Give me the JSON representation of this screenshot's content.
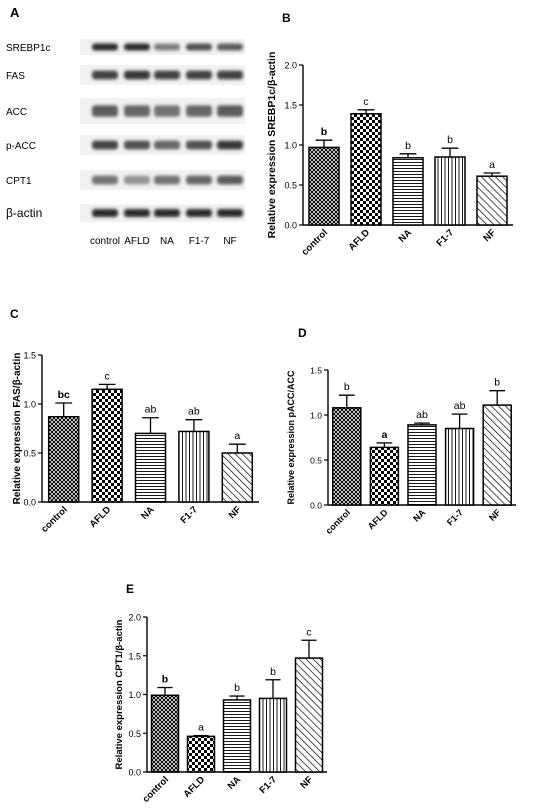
{
  "colors": {
    "ink": "#000000",
    "blot_background": "#f2f2f2"
  },
  "blot_panel": {
    "panel_letter": "A",
    "rows": [
      {
        "label": "SREBP1c",
        "intensities": [
          0.9,
          0.9,
          0.55,
          0.75,
          0.7
        ]
      },
      {
        "label": "FAS",
        "intensities": [
          0.8,
          0.85,
          0.8,
          0.8,
          0.8
        ]
      },
      {
        "label": "ACC",
        "intensities": [
          0.7,
          0.65,
          0.6,
          0.65,
          0.7
        ]
      },
      {
        "label": "p-ACC",
        "intensities": [
          0.8,
          0.75,
          0.65,
          0.75,
          0.85
        ]
      },
      {
        "label": "CPT1",
        "intensities": [
          0.6,
          0.45,
          0.6,
          0.65,
          0.7
        ]
      },
      {
        "label": "β-actin",
        "intensities": [
          0.9,
          0.9,
          0.9,
          0.9,
          0.9
        ]
      }
    ],
    "lanes": [
      "control",
      "AFLD",
      "NA",
      "F1-7",
      "NF"
    ]
  },
  "chart_data": [
    {
      "panel_letter": "B",
      "type": "bar",
      "categories": [
        "control",
        "AFLD",
        "NA",
        "F1-7",
        "NF"
      ],
      "values": [
        0.97,
        1.39,
        0.84,
        0.85,
        0.61
      ],
      "errors": [
        0.09,
        0.05,
        0.05,
        0.11,
        0.04
      ],
      "sig_labels": [
        "b",
        "c",
        "b",
        "b",
        "a"
      ],
      "sig_bold": [
        true,
        false,
        false,
        false,
        false
      ],
      "patterns": [
        "crosshatch",
        "checker",
        "hlines",
        "vlines",
        "diag"
      ],
      "ylabel": "Relative expression SREBP1c/β-actin",
      "ylim": [
        0,
        2.0
      ],
      "yticks": [
        "0.0",
        "0.5",
        "1.0",
        "1.5",
        "2.0"
      ]
    },
    {
      "panel_letter": "C",
      "type": "bar",
      "categories": [
        "control",
        "AFLD",
        "NA",
        "F1-7",
        "NF"
      ],
      "values": [
        0.87,
        1.15,
        0.7,
        0.72,
        0.5
      ],
      "errors": [
        0.14,
        0.05,
        0.16,
        0.12,
        0.09
      ],
      "sig_labels": [
        "bc",
        "c",
        "ab",
        "ab",
        "a"
      ],
      "sig_bold": [
        true,
        false,
        false,
        false,
        false
      ],
      "patterns": [
        "crosshatch",
        "checker",
        "hlines",
        "vlines",
        "diag"
      ],
      "ylabel": "Relative expression FAS/β-actin",
      "ylim": [
        0,
        1.5
      ],
      "yticks": [
        "0.0",
        "0.5",
        "1.0",
        "1.5"
      ]
    },
    {
      "panel_letter": "D",
      "type": "bar",
      "categories": [
        "control",
        "AFLD",
        "NA",
        "F1-7",
        "NF"
      ],
      "values": [
        1.08,
        0.64,
        0.89,
        0.85,
        1.11
      ],
      "errors": [
        0.14,
        0.05,
        0.02,
        0.16,
        0.16
      ],
      "sig_labels": [
        "b",
        "a",
        "ab",
        "ab",
        "b"
      ],
      "sig_bold": [
        false,
        true,
        false,
        false,
        false
      ],
      "patterns": [
        "crosshatch",
        "checker",
        "hlines",
        "vlines",
        "diag"
      ],
      "ylabel": "Relative expression pACC/ACC",
      "ylim": [
        0,
        1.5
      ],
      "yticks": [
        "0.0",
        "0.5",
        "1.0",
        "1.5"
      ]
    },
    {
      "panel_letter": "E",
      "type": "bar",
      "categories": [
        "control",
        "AFLD",
        "NA",
        "F1-7",
        "NF"
      ],
      "values": [
        0.99,
        0.46,
        0.93,
        0.95,
        1.47
      ],
      "errors": [
        0.1,
        0.01,
        0.05,
        0.24,
        0.23
      ],
      "sig_labels": [
        "b",
        "a",
        "b",
        "b",
        "c"
      ],
      "sig_bold": [
        true,
        false,
        false,
        false,
        false
      ],
      "patterns": [
        "crosshatch",
        "checker",
        "hlines",
        "vlines",
        "diag"
      ],
      "ylabel": "Relative expression CPT1/β-actin",
      "ylim": [
        0,
        2.0
      ],
      "yticks": [
        "0.0",
        "0.5",
        "1.0",
        "1.5",
        "2.0"
      ]
    }
  ]
}
